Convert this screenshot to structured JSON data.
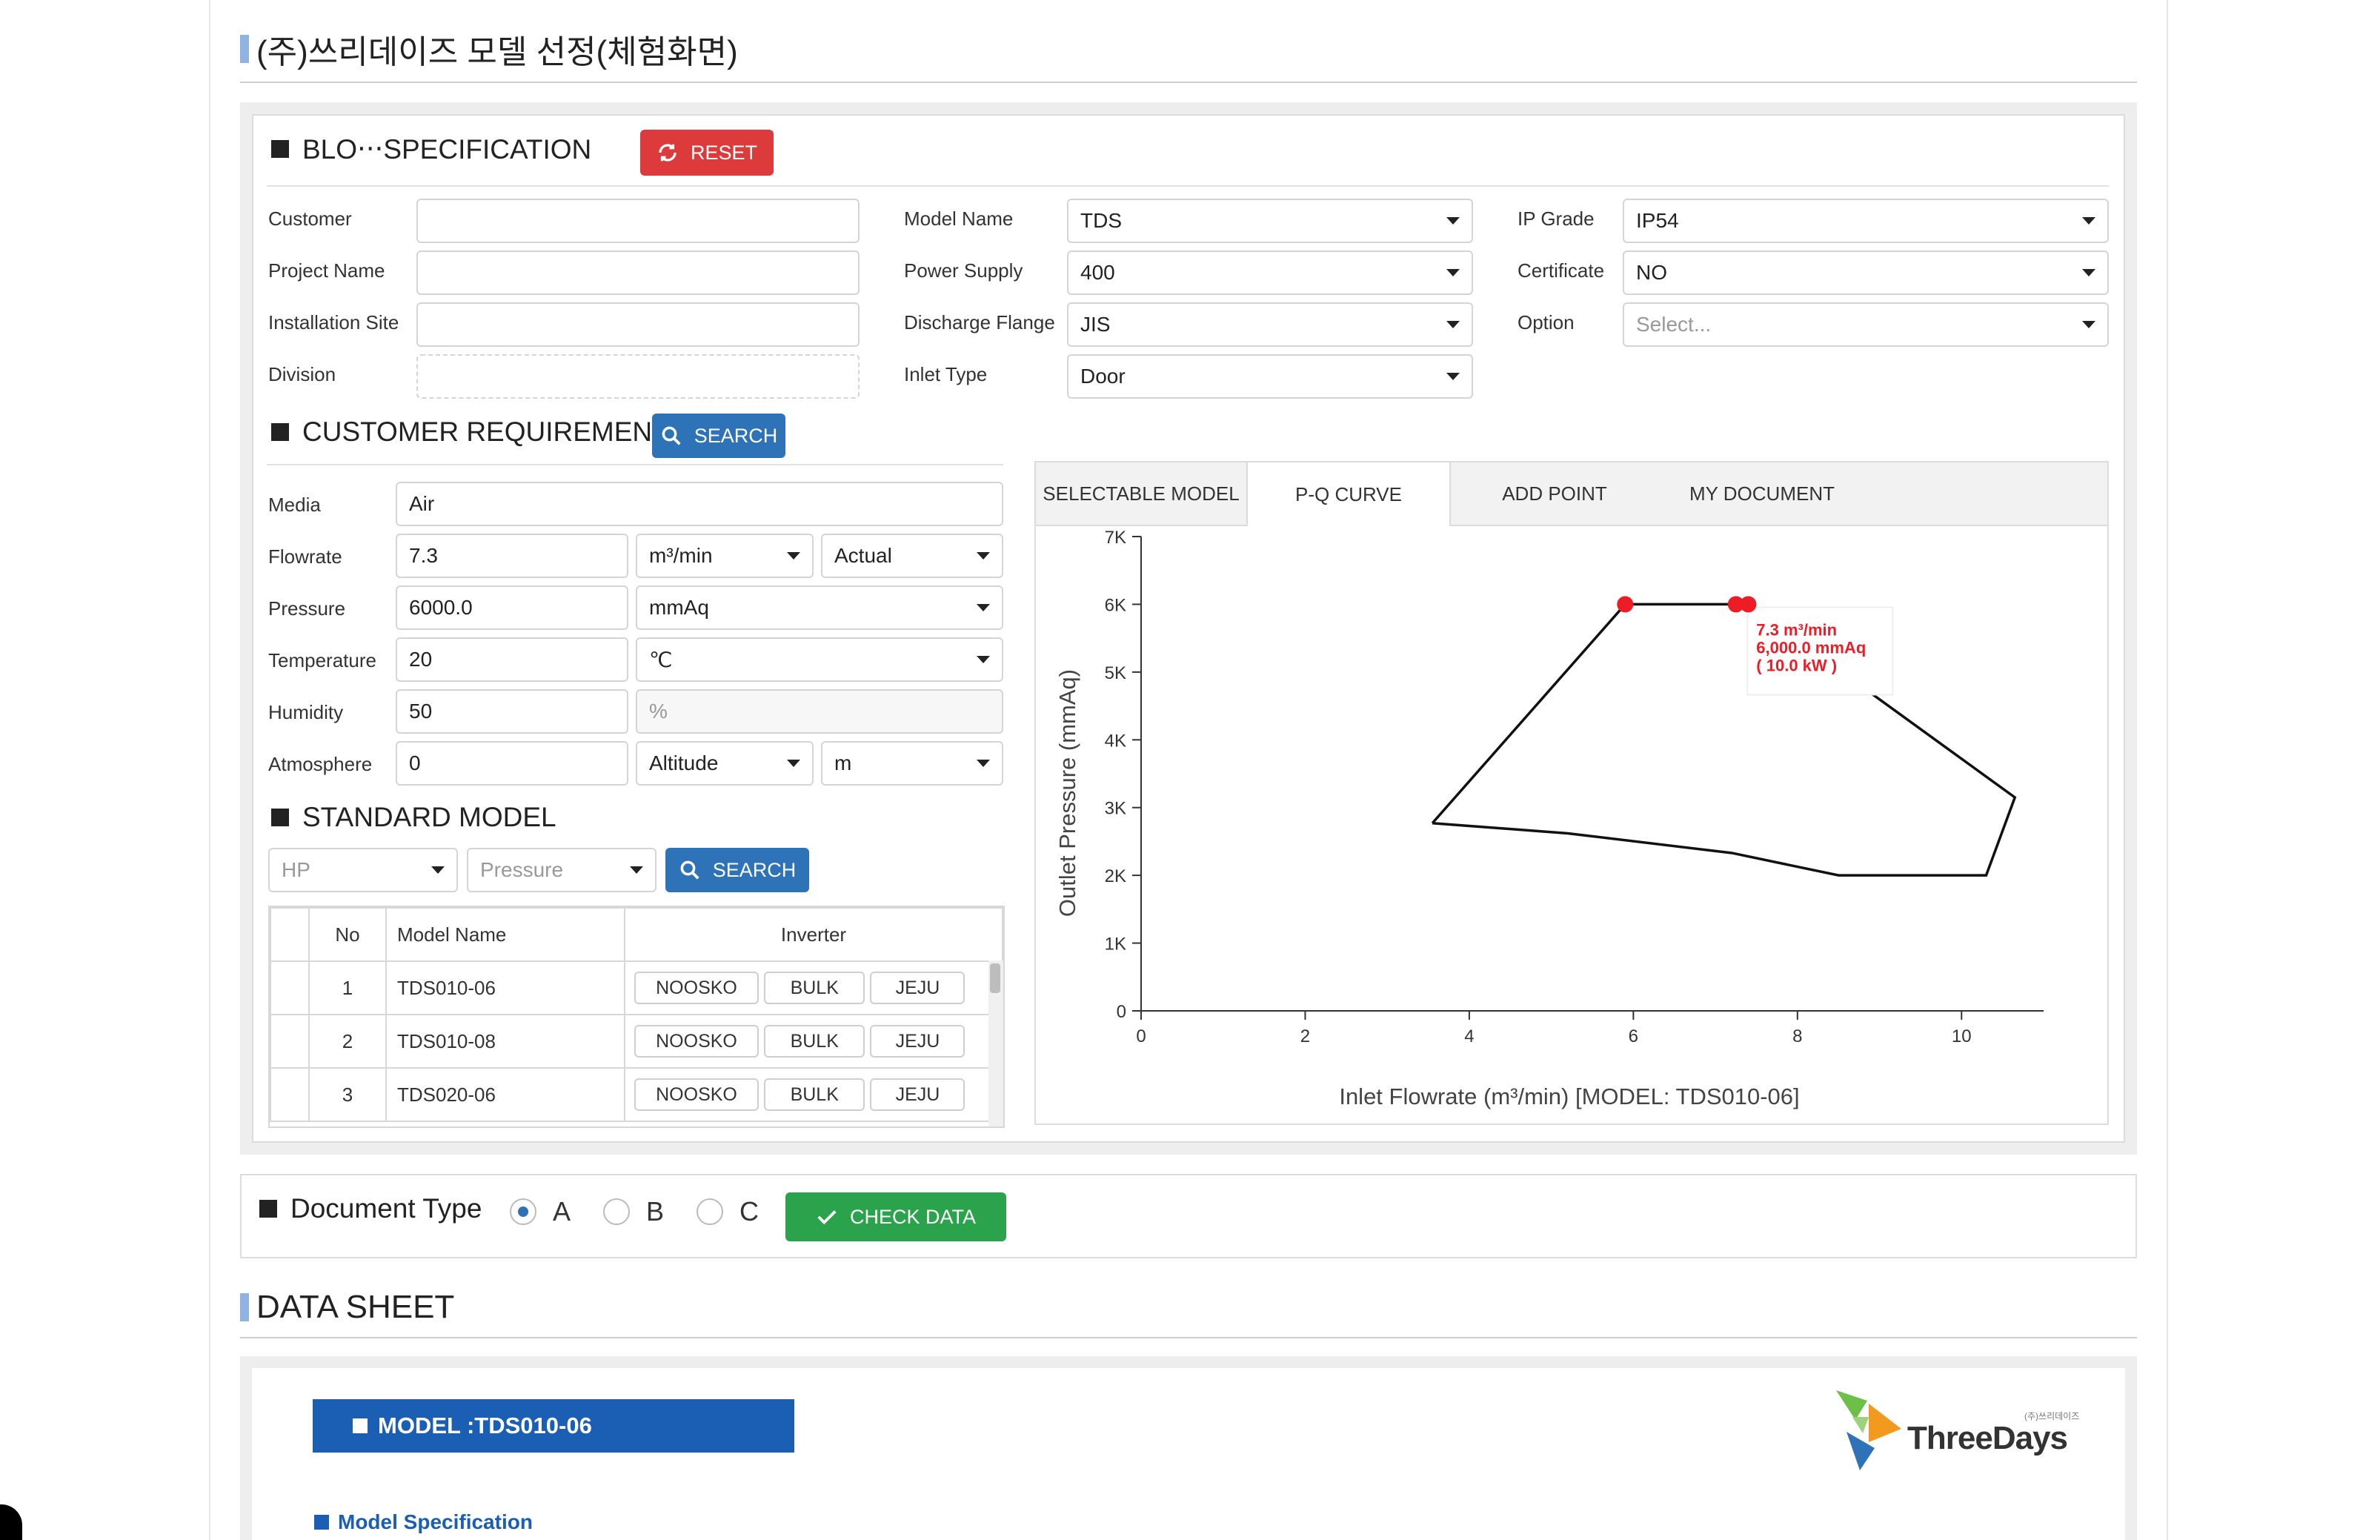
{
  "page_title": "(주)쓰리데이즈 모델 선정(체험화면)",
  "spec": {
    "heading": "BLO‧‧‧SPECIFICATION",
    "reset_label": "RESET",
    "customer_label": "Customer",
    "customer_value": "",
    "project_label": "Project Name",
    "project_value": "",
    "site_label": "Installation Site",
    "site_value": "",
    "division_label": "Division",
    "division_value": "",
    "model_name_label": "Model Name",
    "model_name_value": "TDS",
    "power_label": "Power Supply",
    "power_value": "400",
    "flange_label": "Discharge Flange",
    "flange_value": "JIS",
    "inlet_label": "Inlet Type",
    "inlet_value": "Door",
    "ip_label": "IP Grade",
    "ip_value": "IP54",
    "cert_label": "Certificate",
    "cert_value": "NO",
    "option_label": "Option",
    "option_placeholder": "Select..."
  },
  "requirement": {
    "heading": "CUSTOMER REQUIREMENT",
    "search_label": "SEARCH",
    "media_label": "Media",
    "media_value": "Air",
    "flow_label": "Flowrate",
    "flow_value": "7.3",
    "flow_unit": "m³/min",
    "flow_mode": "Actual",
    "pressure_label": "Pressure",
    "pressure_value": "6000.0",
    "pressure_unit": "mmAq",
    "temp_label": "Temperature",
    "temp_value": "20",
    "temp_unit": "℃",
    "humidity_label": "Humidity",
    "humidity_value": "50",
    "humidity_unit": "%",
    "atm_label": "Atmosphere",
    "atm_value": "0",
    "atm_mode": "Altitude",
    "atm_unit": "m"
  },
  "standard": {
    "heading": "STANDARD MODEL",
    "hp_placeholder": "HP",
    "pressure_placeholder": "Pressure",
    "search_label": "SEARCH",
    "col_no": "No",
    "col_model": "Model Name",
    "col_inverter": "Inverter",
    "rows": [
      {
        "no": "1",
        "model": "TDS010-06",
        "b1": "NOOSKO",
        "b2": "BULK",
        "b3": "JEJU"
      },
      {
        "no": "2",
        "model": "TDS010-08",
        "b1": "NOOSKO",
        "b2": "BULK",
        "b3": "JEJU"
      },
      {
        "no": "3",
        "model": "TDS020-06",
        "b1": "NOOSKO",
        "b2": "BULK",
        "b3": "JEJU"
      }
    ]
  },
  "tabs": [
    "SELECTABLE MODEL",
    "P-Q CURVE",
    "ADD POINT",
    "MY DOCUMENT"
  ],
  "active_tab": "P-Q CURVE",
  "chart_data": {
    "type": "line",
    "title": "",
    "xlabel": "Inlet Flowrate (m³/min)   [MODEL: TDS010-06]",
    "ylabel": "Outlet Pressure (mmAq)",
    "xlim": [
      0,
      11
    ],
    "ylim": [
      0,
      7000
    ],
    "x_ticks": [
      "0",
      "2",
      "4",
      "6",
      "8",
      "10"
    ],
    "y_ticks": [
      "0",
      "1K",
      "2K",
      "3K",
      "4K",
      "5K",
      "6K",
      "7K"
    ],
    "envelope": {
      "x": [
        3.55,
        5.9,
        7.4,
        10.65,
        10.3,
        8.5,
        7.2,
        5.2,
        3.55
      ],
      "y": [
        2770,
        6000,
        6000,
        3150,
        2000,
        2000,
        2330,
        2620,
        2770
      ]
    },
    "points": [
      {
        "x": 5.9,
        "y": 6000
      },
      {
        "x": 7.25,
        "y": 6000
      },
      {
        "x": 7.4,
        "y": 6000
      }
    ],
    "color_points": "#ee1c25",
    "annotation": [
      "7.3 m³/min",
      "6,000.0 mmAq",
      "( 10.0 kW )"
    ]
  },
  "document": {
    "heading": "Document Type",
    "options": [
      "A",
      "B",
      "C"
    ],
    "selected": "A",
    "check_label": "CHECK DATA"
  },
  "datasheet": {
    "title": "DATA SHEET",
    "model_label": "MODEL :TDS010-06",
    "spec_label": "Model Specification",
    "logo_text": "ThreeDays",
    "logo_small": "(주)쓰리데이즈"
  },
  "colors": {
    "reset": "#dd3b3b",
    "search": "#2e73b8",
    "check": "#2ba24c",
    "model_bar": "#1a5fb4"
  }
}
